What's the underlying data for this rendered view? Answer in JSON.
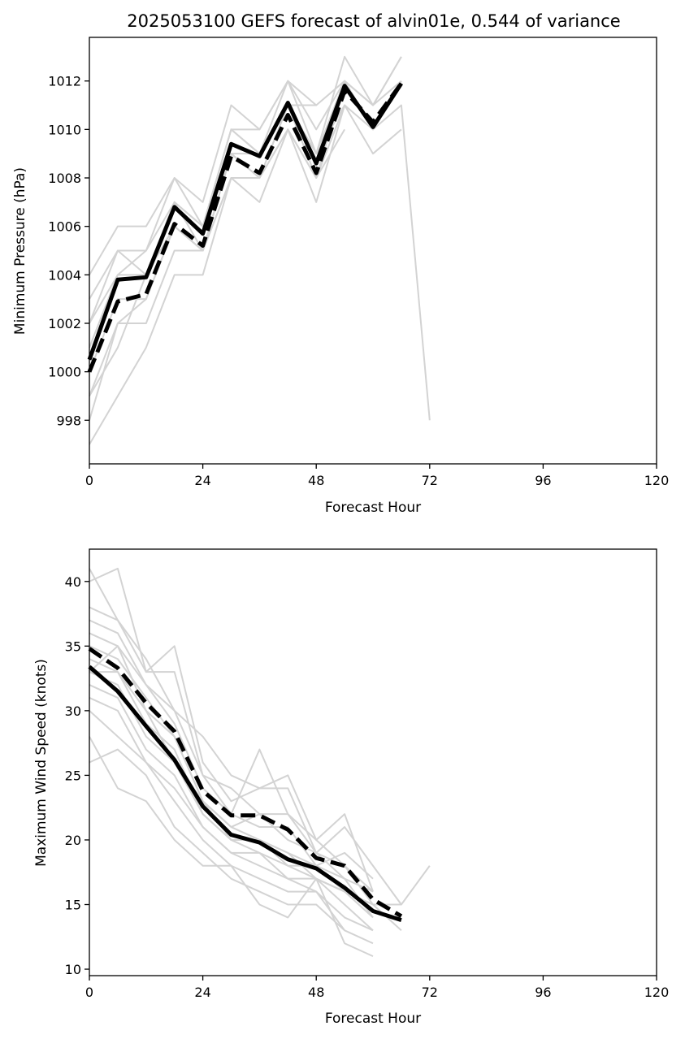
{
  "chart_data": [
    {
      "type": "line",
      "title": "2025053100 GEFS forecast of alvin01e, 0.544 of variance",
      "xlabel": "Forecast Hour",
      "ylabel": "Minimum Pressure (hPa)",
      "xlim": [
        0,
        120
      ],
      "ylim": [
        996.2,
        1013.8
      ],
      "xticks": [
        0,
        24,
        48,
        72,
        96,
        120
      ],
      "yticks": [
        998,
        1000,
        1002,
        1004,
        1006,
        1008,
        1010,
        1012
      ],
      "members": [
        {
          "x": [
            0,
            6,
            12,
            18,
            24,
            30,
            36,
            42,
            48,
            54,
            60,
            66
          ],
          "y": [
            1004,
            1006,
            1006,
            1008,
            1007,
            1011,
            1010,
            1012,
            1011,
            1012,
            1011,
            1013
          ]
        },
        {
          "x": [
            0,
            6,
            12,
            18,
            24,
            30,
            36,
            42,
            48,
            54,
            60,
            66,
            72
          ],
          "y": [
            1003,
            1005,
            1005,
            1008,
            1006,
            1010,
            1010,
            1012,
            1010,
            1012,
            1010,
            1011,
            998
          ]
        },
        {
          "x": [
            0,
            6,
            12,
            18,
            24,
            30,
            36,
            42,
            48,
            54,
            60,
            66
          ],
          "y": [
            1002,
            1005,
            1004,
            1007,
            1006,
            1010,
            1009,
            1011,
            1009,
            1013,
            1011,
            1013
          ]
        },
        {
          "x": [
            0,
            6,
            12,
            18,
            24,
            30,
            36,
            42,
            48,
            54,
            60,
            66
          ],
          "y": [
            1001,
            1004,
            1004,
            1007,
            1005,
            1009,
            1009,
            1011,
            1009,
            1011,
            1010,
            1012
          ]
        },
        {
          "x": [
            0,
            6,
            12,
            18,
            24,
            30,
            36,
            42,
            48,
            54,
            60,
            66
          ],
          "y": [
            1000,
            1003,
            1003,
            1006,
            1005,
            1009,
            1008,
            1011,
            1008,
            1012,
            1010,
            1012
          ]
        },
        {
          "x": [
            0,
            6,
            12,
            18,
            24,
            30,
            36,
            42,
            48,
            54
          ],
          "y": [
            999,
            1002,
            1002,
            1005,
            1005,
            1008,
            1008,
            1010,
            1008,
            1011
          ]
        },
        {
          "x": [
            0,
            6,
            12,
            18,
            24,
            30,
            36,
            42,
            48,
            54,
            60,
            66
          ],
          "y": [
            998,
            1002,
            1003,
            1006,
            1005,
            1008,
            1007,
            1010,
            1007,
            1011,
            1009,
            1010
          ]
        },
        {
          "x": [
            0,
            12,
            18,
            24,
            30,
            36,
            42,
            48
          ],
          "y": [
            997,
            1001,
            1004,
            1004,
            1008,
            1008,
            1011,
            1011
          ]
        },
        {
          "x": [
            0,
            6,
            12,
            18,
            24,
            30,
            36,
            42,
            48,
            54,
            60,
            66
          ],
          "y": [
            1002,
            1004,
            1005,
            1007,
            1006,
            1010,
            1009,
            1012,
            1009,
            1012,
            1011,
            1012
          ]
        },
        {
          "x": [
            0,
            6,
            12,
            18,
            24,
            30,
            36,
            42,
            48,
            54
          ],
          "y": [
            999,
            1001,
            1004,
            1006,
            1005,
            1009,
            1008,
            1010,
            1008,
            1010
          ]
        }
      ],
      "series": [
        {
          "style": "solid",
          "x": [
            0,
            6,
            12,
            18,
            24,
            30,
            36,
            42,
            48,
            54,
            60,
            66
          ],
          "y": [
            1000.5,
            1003.8,
            1003.9,
            1006.8,
            1005.7,
            1009.4,
            1008.9,
            1011.1,
            1008.6,
            1011.8,
            1010.1,
            1011.9
          ]
        },
        {
          "style": "dashed",
          "x": [
            0,
            6,
            12,
            18,
            24,
            30,
            36,
            42,
            48,
            54,
            60,
            66
          ],
          "y": [
            1000.0,
            1002.9,
            1003.2,
            1006.1,
            1005.2,
            1008.9,
            1008.2,
            1010.6,
            1008.2,
            1011.6,
            1010.3,
            1011.9
          ]
        }
      ]
    },
    {
      "type": "line",
      "xlabel": "Forecast Hour",
      "ylabel": "Maximum Wind Speed (knots)",
      "xlim": [
        0,
        120
      ],
      "ylim": [
        9.5,
        42.5
      ],
      "xticks": [
        0,
        24,
        48,
        72,
        96,
        120
      ],
      "yticks": [
        10,
        15,
        20,
        25,
        30,
        35,
        40
      ],
      "members": [
        {
          "x": [
            0,
            6,
            12,
            18,
            24,
            30,
            36,
            42,
            48,
            54,
            60,
            66
          ],
          "y": [
            41,
            37,
            34,
            30,
            28,
            25,
            24,
            24,
            19,
            21,
            18,
            15
          ]
        },
        {
          "x": [
            0,
            6,
            12,
            18,
            24,
            30,
            36,
            42,
            48,
            54,
            60
          ],
          "y": [
            40,
            41,
            33,
            35,
            26,
            23,
            24,
            25,
            20,
            22,
            16
          ]
        },
        {
          "x": [
            0,
            6,
            12,
            18,
            24,
            30,
            36,
            42,
            48,
            54,
            60
          ],
          "y": [
            38,
            37,
            33,
            33,
            25,
            24,
            22,
            22,
            19,
            17,
            14
          ]
        },
        {
          "x": [
            0,
            6,
            12,
            18,
            24,
            30,
            36,
            42,
            48,
            54,
            60
          ],
          "y": [
            37,
            36,
            32,
            30,
            25,
            22,
            27,
            22,
            20,
            18,
            15
          ]
        },
        {
          "x": [
            0,
            6,
            12,
            18,
            24,
            30,
            36,
            42,
            48,
            54,
            60
          ],
          "y": [
            36,
            35,
            32,
            29,
            24,
            22,
            21,
            21,
            18,
            19,
            17
          ]
        },
        {
          "x": [
            0,
            6,
            12,
            18,
            24,
            30,
            36,
            42,
            48,
            54,
            60
          ],
          "y": [
            35,
            34,
            31,
            28,
            23,
            21,
            22,
            20,
            19,
            18,
            16
          ]
        },
        {
          "x": [
            0,
            6,
            12,
            18,
            24,
            30,
            36,
            42,
            48,
            54,
            60,
            66,
            72
          ],
          "y": [
            34,
            33,
            30,
            28,
            23,
            21,
            20,
            19,
            17,
            16,
            15,
            15,
            18
          ]
        },
        {
          "x": [
            0,
            6,
            12,
            18,
            24,
            30,
            36,
            42,
            48,
            54,
            60
          ],
          "y": [
            33,
            33,
            29,
            27,
            22,
            20,
            20,
            19,
            18,
            17,
            16
          ]
        },
        {
          "x": [
            0,
            6,
            12,
            18,
            24,
            30,
            36,
            42,
            48,
            54,
            60
          ],
          "y": [
            33,
            32,
            28,
            26,
            22,
            20,
            19,
            18,
            17,
            16,
            14
          ]
        },
        {
          "x": [
            0,
            6,
            12,
            18,
            24,
            30,
            36,
            42,
            48,
            54,
            60
          ],
          "y": [
            32,
            31,
            27,
            25,
            21,
            19,
            19,
            17,
            17,
            15,
            13
          ]
        },
        {
          "x": [
            0,
            6,
            12,
            18,
            24,
            30,
            36,
            42,
            48,
            54,
            60
          ],
          "y": [
            31,
            30,
            26,
            24,
            21,
            19,
            18,
            17,
            16,
            14,
            13
          ]
        },
        {
          "x": [
            0,
            6,
            12,
            18,
            24,
            30,
            36,
            42,
            48,
            54,
            60
          ],
          "y": [
            30,
            28,
            26,
            23,
            20,
            18,
            17,
            16,
            16,
            13,
            12
          ]
        },
        {
          "x": [
            0,
            6,
            12,
            18,
            24,
            30,
            36,
            42,
            48,
            54,
            60
          ],
          "y": [
            28,
            24,
            23,
            20,
            18,
            18,
            15,
            14,
            17,
            12,
            11
          ]
        },
        {
          "x": [
            0,
            6,
            12,
            18,
            24,
            30,
            36,
            42,
            48,
            54
          ],
          "y": [
            26,
            27,
            25,
            21,
            19,
            17,
            16,
            15,
            15,
            13
          ]
        },
        {
          "x": [
            0,
            6,
            12,
            18,
            24,
            30,
            36,
            42,
            48,
            54,
            60,
            66
          ],
          "y": [
            33,
            35,
            30,
            26,
            23,
            20,
            20,
            18,
            18,
            16,
            15,
            13
          ]
        }
      ],
      "series": [
        {
          "style": "solid",
          "x": [
            0,
            6,
            12,
            18,
            24,
            30,
            36,
            42,
            48,
            54,
            60,
            66
          ],
          "y": [
            33.4,
            31.5,
            28.8,
            26.2,
            22.6,
            20.4,
            19.8,
            18.5,
            17.8,
            16.3,
            14.5,
            13.8
          ]
        },
        {
          "style": "dashed",
          "x": [
            0,
            6,
            12,
            18,
            24,
            30,
            36,
            42,
            48,
            54,
            60,
            66
          ],
          "y": [
            34.8,
            33.3,
            30.6,
            28.4,
            23.8,
            21.9,
            21.9,
            20.8,
            18.6,
            18.0,
            15.4,
            14.1
          ]
        }
      ]
    }
  ]
}
